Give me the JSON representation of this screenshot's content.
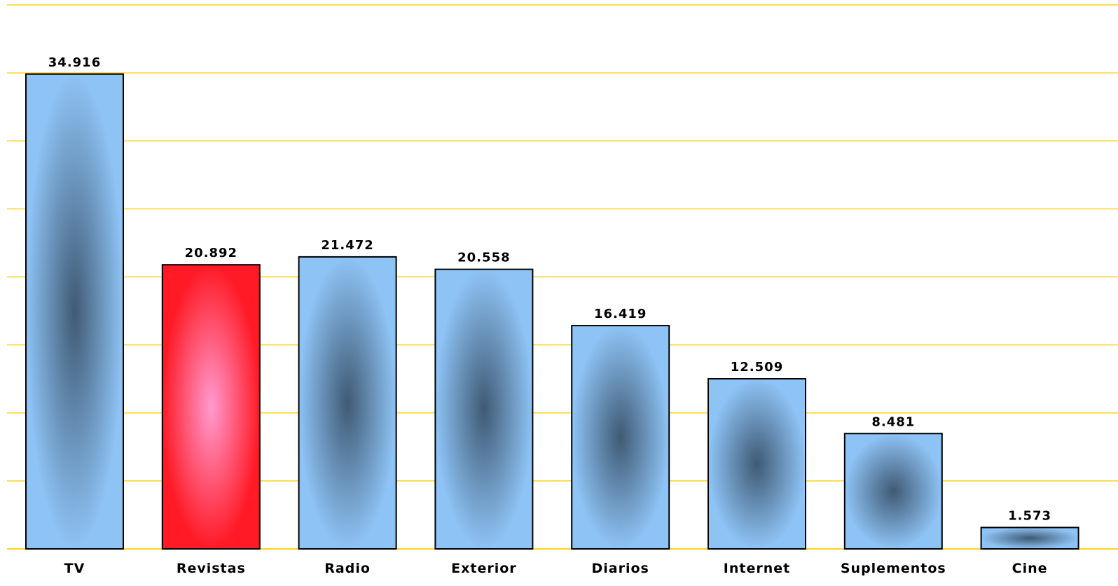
{
  "chart_data": {
    "type": "bar",
    "categories": [
      "TV",
      "Revistas",
      "Radio",
      "Exterior",
      "Diarios",
      "Internet",
      "Suplementos",
      "Cine"
    ],
    "values": [
      34916,
      20892,
      21472,
      20558,
      16419,
      12509,
      8481,
      1573
    ],
    "value_labels": [
      "34.916",
      "20.892",
      "21.472",
      "20.558",
      "16.419",
      "12.509",
      "8.481",
      "1.573"
    ],
    "highlight_index": 1,
    "ylim": [
      0,
      40000
    ],
    "grid": true,
    "legend": "none",
    "title": "",
    "xlabel": "",
    "ylabel": ""
  },
  "colors": {
    "grid": "#ffd21e",
    "bar_edge": "#8ec3f5",
    "bar_center": "#3f5a74",
    "highlight_edge": "#ff1a25",
    "highlight_center": "#ff9bd0",
    "outline": "#000000"
  }
}
